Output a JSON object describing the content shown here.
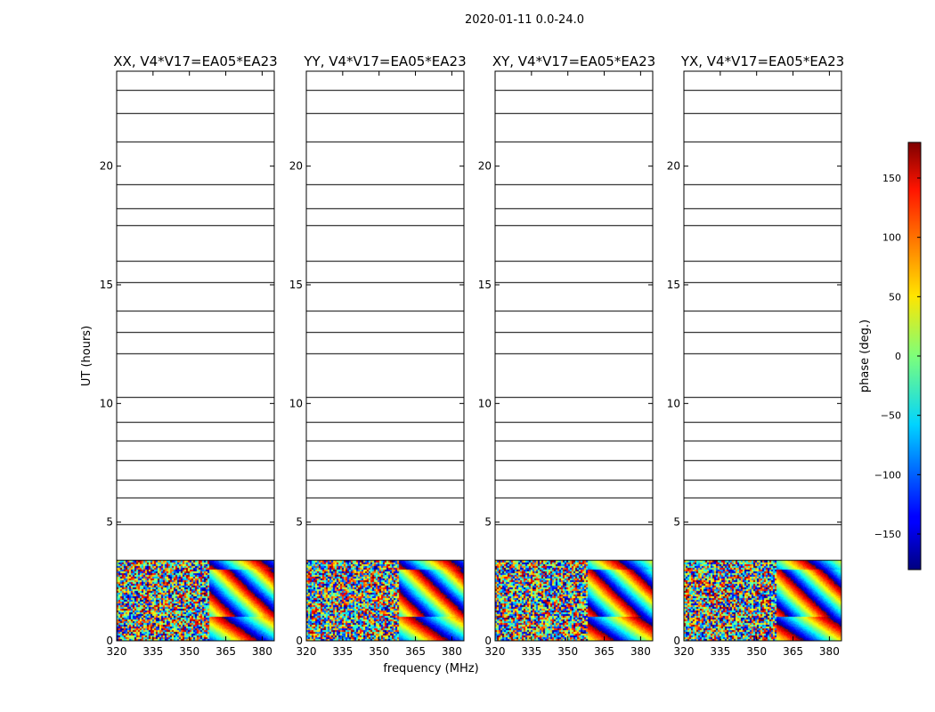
{
  "figure_title": "2020-01-11 0.0-24.0",
  "chart_data": {
    "type": "heatmap",
    "xlabel": "frequency (MHz)",
    "ylabel": "UT (hours)",
    "xlim": [
      320,
      385
    ],
    "ylim": [
      0,
      24
    ],
    "xticks": [
      320,
      335,
      350,
      365,
      380
    ],
    "yticks": [
      0,
      5,
      10,
      15,
      20
    ],
    "data_start_hour": 3.4,
    "panels": [
      {
        "title": "XX, V4*V17=EA05*EA23",
        "mode": "parallel",
        "offset": 25
      },
      {
        "title": "YY, V4*V17=EA05*EA23",
        "mode": "parallel",
        "offset": -95
      },
      {
        "title": "XY, V4*V17=EA05*EA23",
        "mode": "cross",
        "offset": 0
      },
      {
        "title": "YX, V4*V17=EA05*EA23",
        "mode": "cross",
        "offset": 40
      }
    ],
    "gap_hours": [
      3.5,
      4.2,
      5.0,
      5.9,
      6.1,
      6.6,
      6.85,
      7.2,
      7.7,
      8.1,
      8.5,
      9.0,
      9.3,
      9.7,
      10.35,
      11.5,
      12.2,
      12.6,
      13.1,
      13.5,
      14.0,
      14.3,
      15.2,
      15.6,
      16.1,
      16.9,
      17.6,
      18.0,
      18.3,
      18.9,
      19.3,
      19.8,
      21.1,
      21.8,
      22.3,
      22.9,
      23.3,
      23.7
    ],
    "colorbar": {
      "label": "phase (deg.)",
      "range": [
        -180,
        180
      ],
      "ticks": [
        150,
        100,
        50,
        0,
        -50,
        -100,
        -150
      ],
      "tick_labels": [
        "150",
        "100",
        "50",
        "0",
        "−50",
        "−100",
        "−150"
      ]
    }
  }
}
